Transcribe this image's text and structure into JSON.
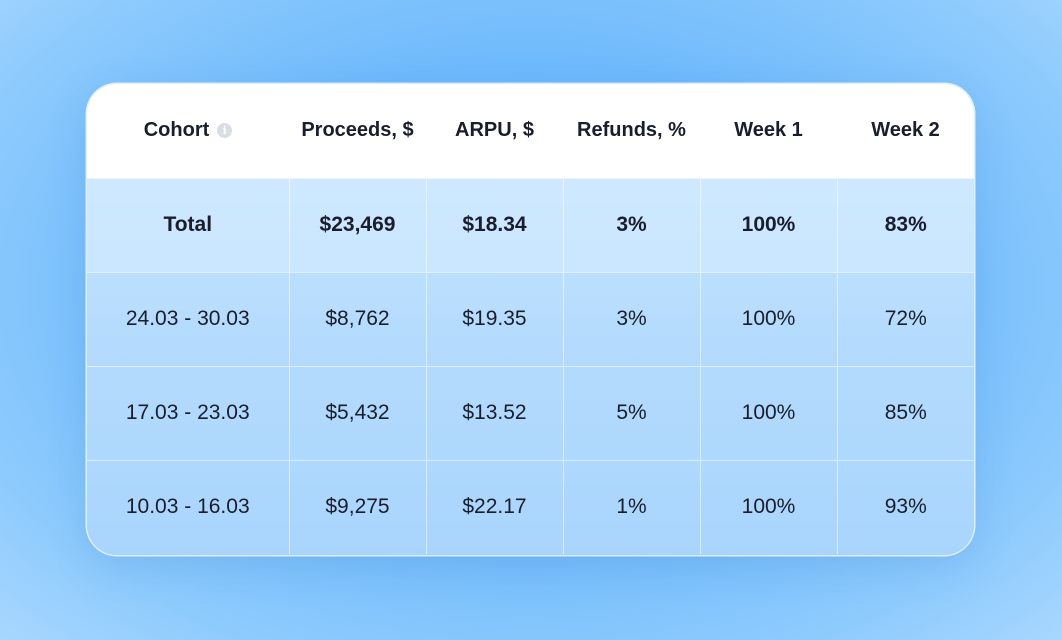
{
  "table": {
    "headers": [
      "Cohort",
      "Proceeds, $",
      "ARPU, $",
      "Refunds, %",
      "Week 1",
      "Week 2"
    ],
    "info_icon": "info-icon",
    "total": {
      "label": "Total",
      "proceeds": "$23,469",
      "arpu": "$18.34",
      "refunds": "3%",
      "week1": "100%",
      "week2": "83%"
    },
    "rows": [
      {
        "cohort": "24.03 - 30.03",
        "proceeds": "$8,762",
        "arpu": "$19.35",
        "refunds": "3%",
        "week1": "100%",
        "week2": "72%"
      },
      {
        "cohort": "17.03 - 23.03",
        "proceeds": "$5,432",
        "arpu": "$13.52",
        "refunds": "5%",
        "week1": "100%",
        "week2": "85%"
      },
      {
        "cohort": "10.03 - 16.03",
        "proceeds": "$9,275",
        "arpu": "$22.17",
        "refunds": "1%",
        "week1": "100%",
        "week2": "93%"
      }
    ]
  },
  "colors": {
    "background": "#6fbafc",
    "header_bg": "#ffffff",
    "text": "#1a1d2b",
    "table_body": "#b4dbfd"
  }
}
